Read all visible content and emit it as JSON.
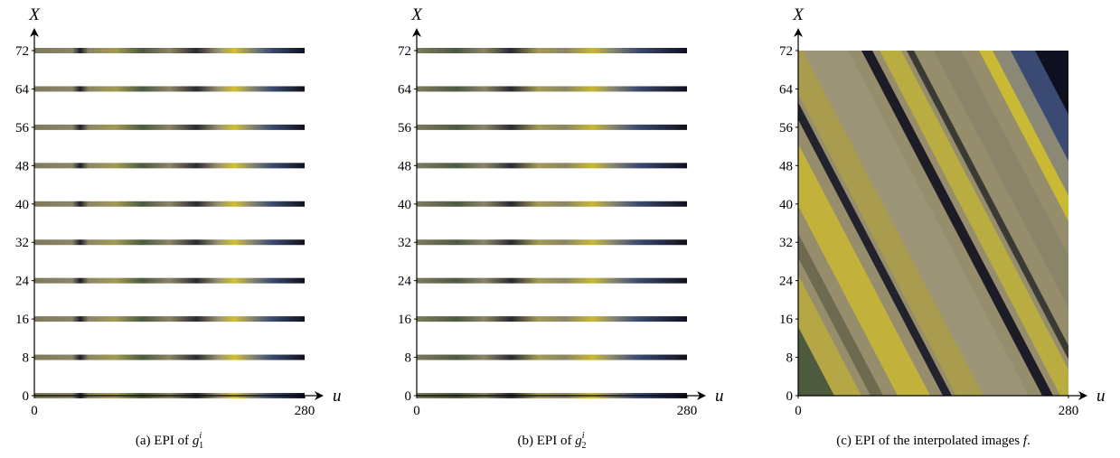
{
  "chart_data": [
    {
      "type": "epi-rows",
      "xlabel": "u",
      "ylabel": "X",
      "xlim": [
        0,
        280
      ],
      "xticks": [
        0,
        280
      ],
      "ylim": [
        0,
        72
      ],
      "yticks": [
        0,
        8,
        16,
        24,
        32,
        40,
        48,
        56,
        64,
        72
      ],
      "caption": [
        {
          "text": "(a) EPI of "
        },
        {
          "text": "g",
          "italic": true,
          "sub": "1",
          "sup": "i"
        }
      ]
    },
    {
      "type": "epi-rows",
      "xlabel": "u",
      "ylabel": "X",
      "xlim": [
        0,
        280
      ],
      "xticks": [
        0,
        280
      ],
      "ylim": [
        0,
        72
      ],
      "yticks": [
        0,
        8,
        16,
        24,
        32,
        40,
        48,
        56,
        64,
        72
      ],
      "caption": [
        {
          "text": "(b) EPI of "
        },
        {
          "text": "g",
          "italic": true,
          "sub": "2",
          "sup": "i"
        }
      ]
    },
    {
      "type": "epi-full",
      "xlabel": "u",
      "ylabel": "X",
      "xlim": [
        0,
        280
      ],
      "xticks": [
        0,
        280
      ],
      "ylim": [
        0,
        72
      ],
      "yticks": [
        0,
        8,
        16,
        24,
        32,
        40,
        48,
        56,
        64,
        72
      ],
      "caption": [
        {
          "text": "(c) EPI of the interpolated images "
        },
        {
          "text": "f",
          "italic": true
        },
        {
          "text": "."
        }
      ]
    }
  ]
}
